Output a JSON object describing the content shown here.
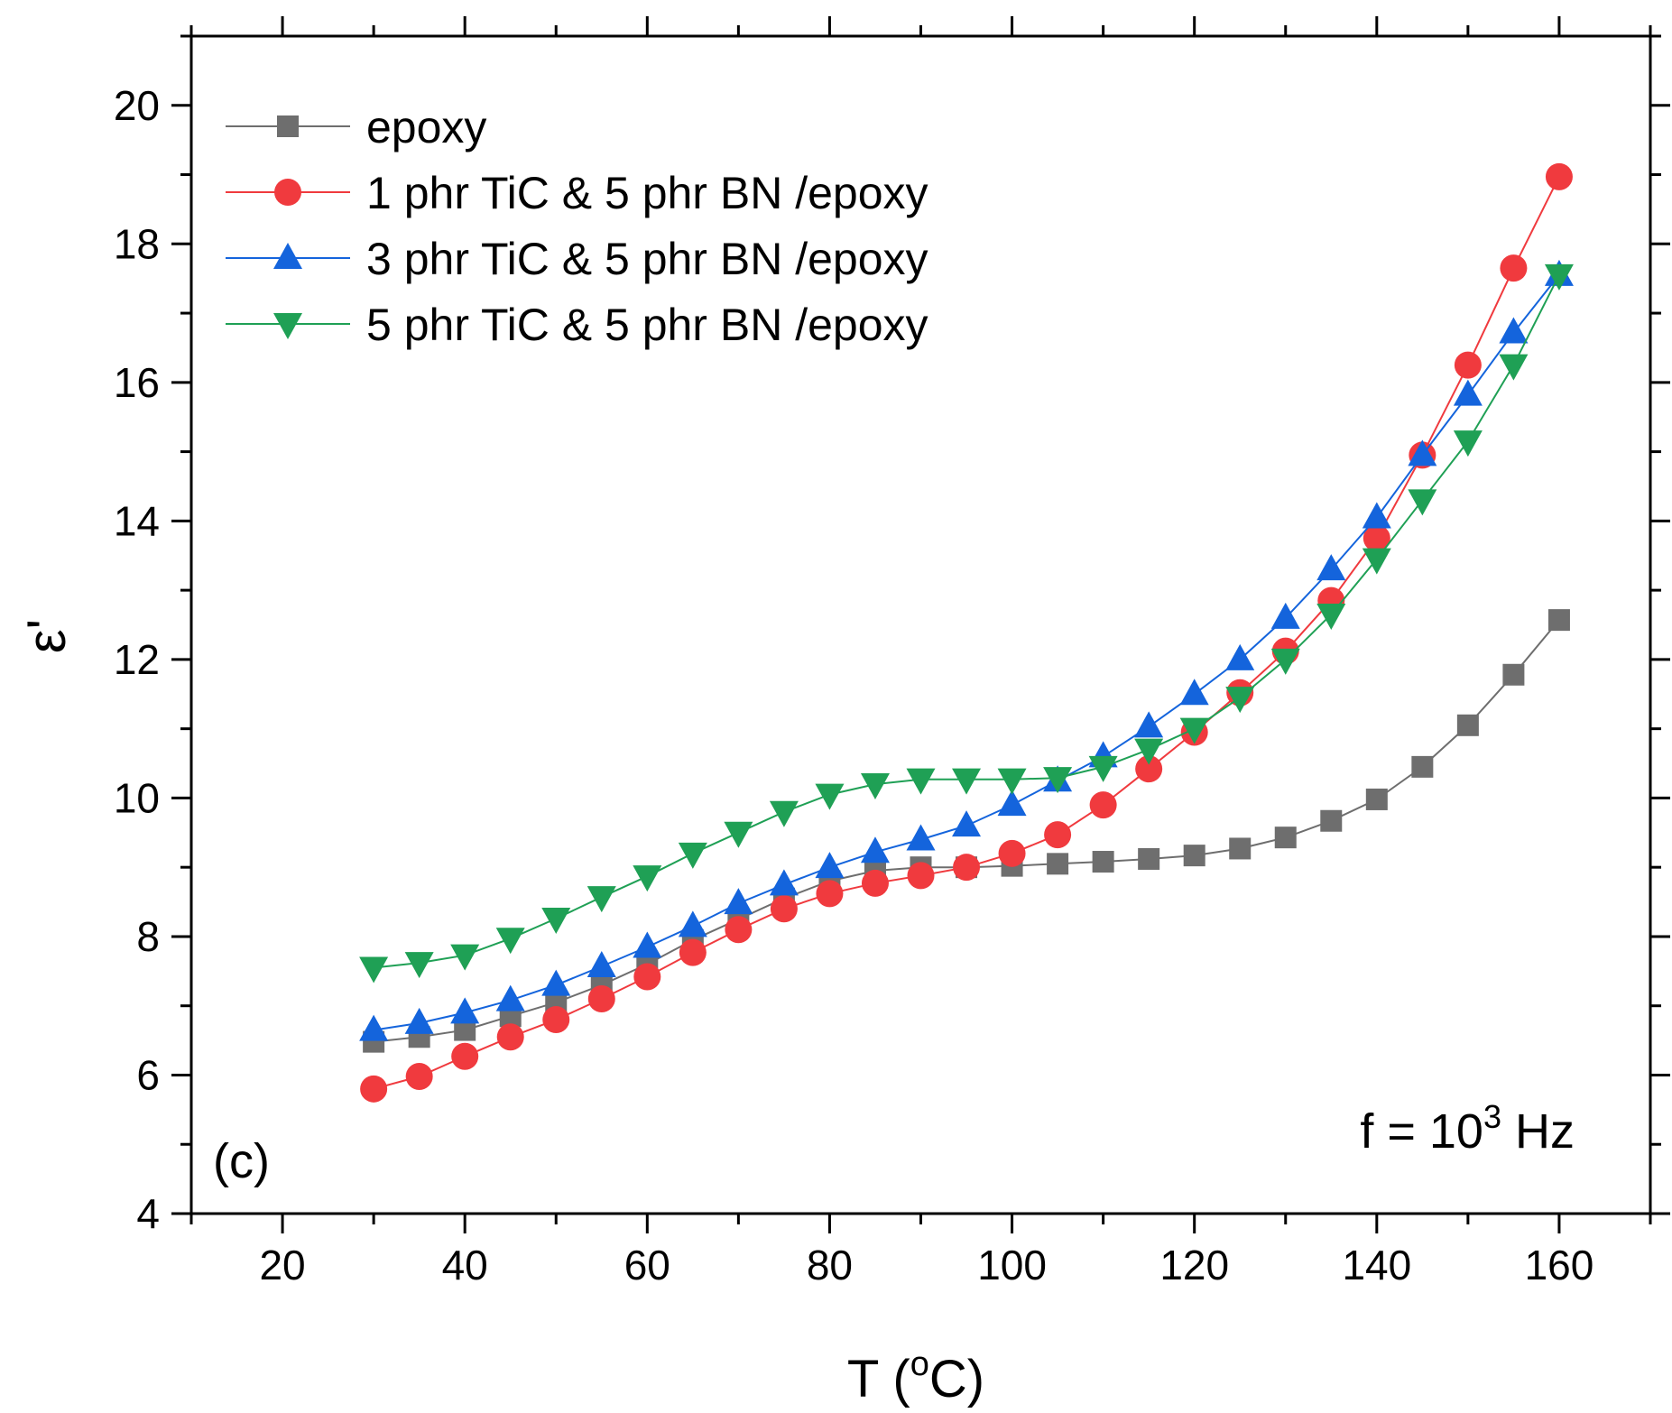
{
  "chart_data": {
    "type": "line",
    "panel_label": "(c)",
    "annotation": {
      "prefix": "f = 10",
      "superscript": "3",
      "suffix": " Hz"
    },
    "xlabel": {
      "prefix": "T (",
      "superscript": "o",
      "suffix": "C)"
    },
    "ylabel": "ε'",
    "xlim": [
      10,
      170
    ],
    "ylim": [
      4,
      21
    ],
    "x_ticks": [
      20,
      40,
      60,
      80,
      100,
      120,
      140,
      160
    ],
    "y_ticks": [
      4,
      6,
      8,
      10,
      12,
      14,
      16,
      18,
      20
    ],
    "x": [
      30,
      35,
      40,
      45,
      50,
      55,
      60,
      65,
      70,
      75,
      80,
      85,
      90,
      95,
      100,
      105,
      110,
      115,
      120,
      125,
      130,
      135,
      140,
      145,
      150,
      155,
      160
    ],
    "legend_position": "top-left",
    "series": [
      {
        "name": "epoxy",
        "marker": "square",
        "color": "#6e6e6e",
        "values": [
          6.48,
          6.55,
          6.65,
          6.85,
          7.05,
          7.3,
          7.6,
          7.95,
          8.25,
          8.55,
          8.8,
          8.95,
          9.0,
          9.0,
          9.02,
          9.05,
          9.08,
          9.12,
          9.17,
          9.27,
          9.43,
          9.67,
          9.98,
          10.45,
          11.05,
          11.78,
          12.57
        ]
      },
      {
        "name": "1 phr TiC & 5 phr BN /epoxy",
        "marker": "circle",
        "color": "#f03a3e",
        "values": [
          5.8,
          5.98,
          6.27,
          6.55,
          6.8,
          7.1,
          7.42,
          7.77,
          8.1,
          8.4,
          8.62,
          8.77,
          8.88,
          9.0,
          9.2,
          9.47,
          9.9,
          10.42,
          10.95,
          11.52,
          12.12,
          12.85,
          13.75,
          14.95,
          16.25,
          17.65,
          18.97
        ]
      },
      {
        "name": "3 phr TiC & 5 phr BN /epoxy",
        "marker": "triangle-up",
        "color": "#1464dc",
        "values": [
          6.65,
          6.75,
          6.9,
          7.08,
          7.3,
          7.57,
          7.85,
          8.15,
          8.48,
          8.75,
          9.0,
          9.22,
          9.4,
          9.6,
          9.9,
          10.25,
          10.6,
          11.03,
          11.5,
          12.0,
          12.6,
          13.3,
          14.05,
          14.95,
          15.82,
          16.72,
          17.55
        ]
      },
      {
        "name": "5 phr TiC & 5 phr BN /epoxy",
        "marker": "triangle-down",
        "color": "#1fa055",
        "values": [
          7.55,
          7.62,
          7.73,
          7.97,
          8.26,
          8.57,
          8.87,
          9.2,
          9.5,
          9.8,
          10.05,
          10.2,
          10.27,
          10.27,
          10.27,
          10.29,
          10.45,
          10.7,
          11.0,
          11.45,
          12.0,
          12.65,
          13.45,
          14.3,
          15.15,
          16.25,
          17.55
        ]
      }
    ]
  }
}
